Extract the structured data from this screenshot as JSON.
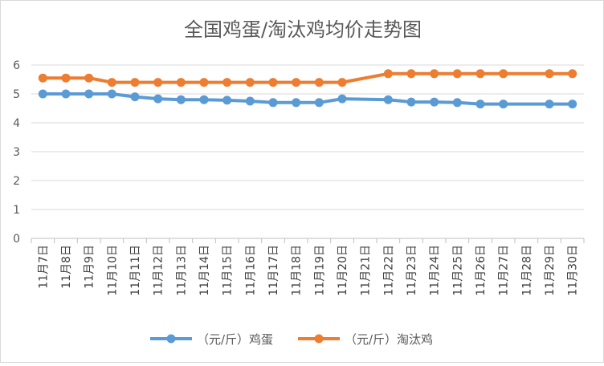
{
  "chart_data": {
    "type": "line",
    "title": "全国鸡蛋/淘汰鸡均价走势图",
    "xlabel": "",
    "ylabel": "",
    "ylim": [
      0,
      6
    ],
    "yticks": [
      "0",
      "1",
      "2",
      "3",
      "4",
      "5",
      "6"
    ],
    "grid": true,
    "legend_position": "bottom",
    "categories": [
      "11月7日",
      "11月8日",
      "11月9日",
      "11月10日",
      "11月11日",
      "11月12日",
      "11月13日",
      "11月14日",
      "11月15日",
      "11月16日",
      "11月17日",
      "11月18日",
      "11月19日",
      "11月20日",
      "11月21日",
      "11月22日",
      "11月23日",
      "11月24日",
      "11月25日",
      "11月26日",
      "11月27日",
      "11月28日",
      "11月29日",
      "11月30日"
    ],
    "series": [
      {
        "name": "（元/斤）鸡蛋",
        "color": "#5b9bd5",
        "values": [
          5.0,
          5.0,
          5.0,
          5.0,
          4.9,
          4.83,
          4.8,
          4.8,
          4.78,
          4.75,
          4.7,
          4.7,
          4.7,
          4.83,
          null,
          4.8,
          4.72,
          4.72,
          4.7,
          4.65,
          4.65,
          null,
          4.65,
          4.65
        ]
      },
      {
        "name": "（元/斤）淘汰鸡",
        "color": "#ed7d31",
        "values": [
          5.55,
          5.55,
          5.55,
          5.4,
          5.4,
          5.4,
          5.4,
          5.4,
          5.4,
          5.4,
          5.4,
          5.4,
          5.4,
          5.4,
          null,
          5.7,
          5.7,
          5.7,
          5.7,
          5.7,
          5.7,
          null,
          5.7,
          5.7
        ]
      }
    ]
  }
}
